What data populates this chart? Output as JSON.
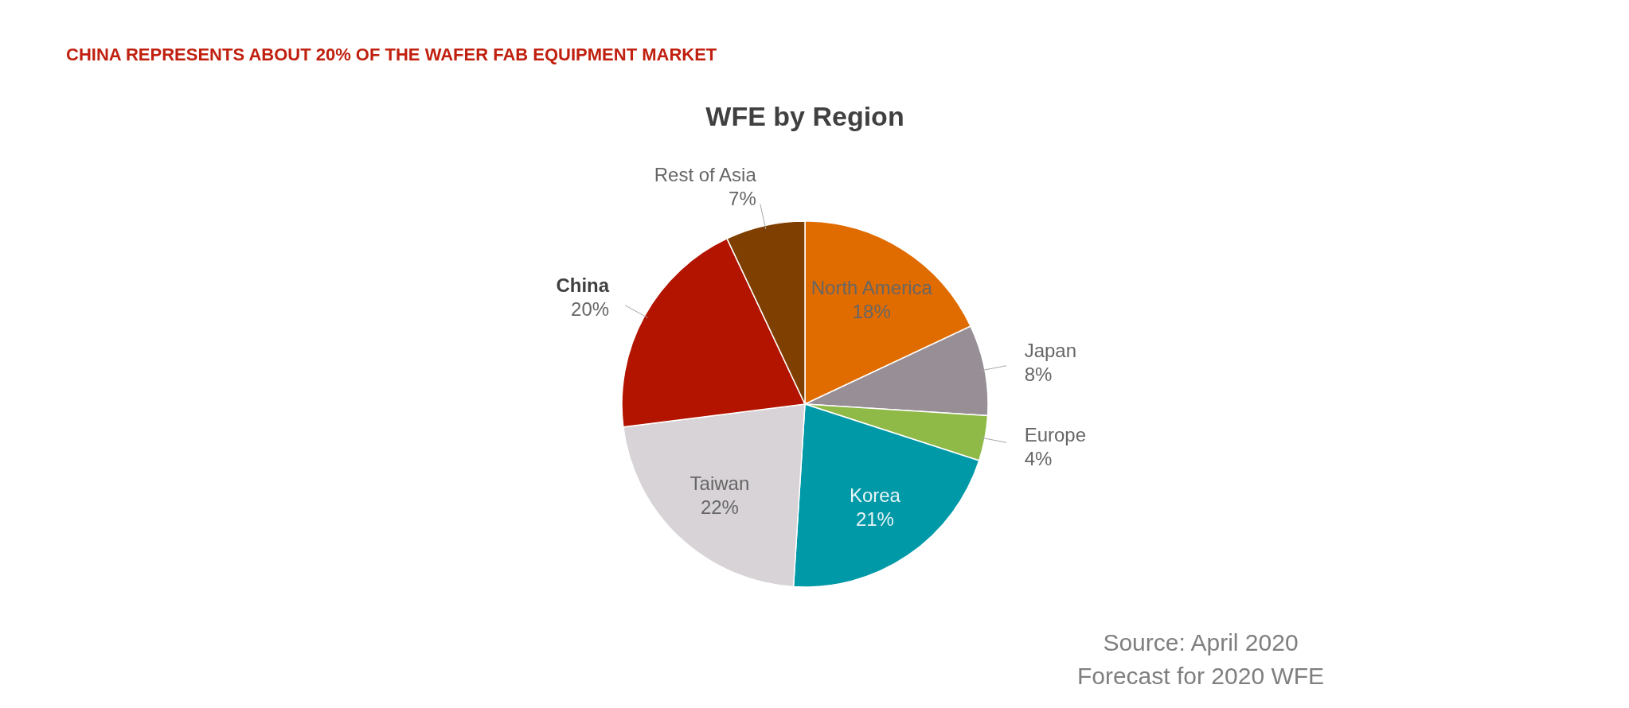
{
  "chart_data": {
    "type": "pie",
    "title": "WFE by Region",
    "subtitle": "CHINA REPRESENTS ABOUT 20% OF THE WAFER FAB EQUIPMENT MARKET",
    "categories": [
      "North America",
      "Japan",
      "Europe",
      "Korea",
      "Taiwan",
      "China",
      "Rest of Asia"
    ],
    "values": [
      18,
      8,
      4,
      21,
      22,
      20,
      7
    ],
    "value_labels": [
      "18%",
      "8%",
      "4%",
      "21%",
      "22%",
      "20%",
      "7%"
    ],
    "colors": [
      "#e06c00",
      "#978f95",
      "#8fba48",
      "#0099a8",
      "#d7d3d6",
      "#b31400",
      "#7f3f00"
    ],
    "annotations": [
      "Source: April 2020",
      "Forecast for 2020 WFE"
    ]
  }
}
